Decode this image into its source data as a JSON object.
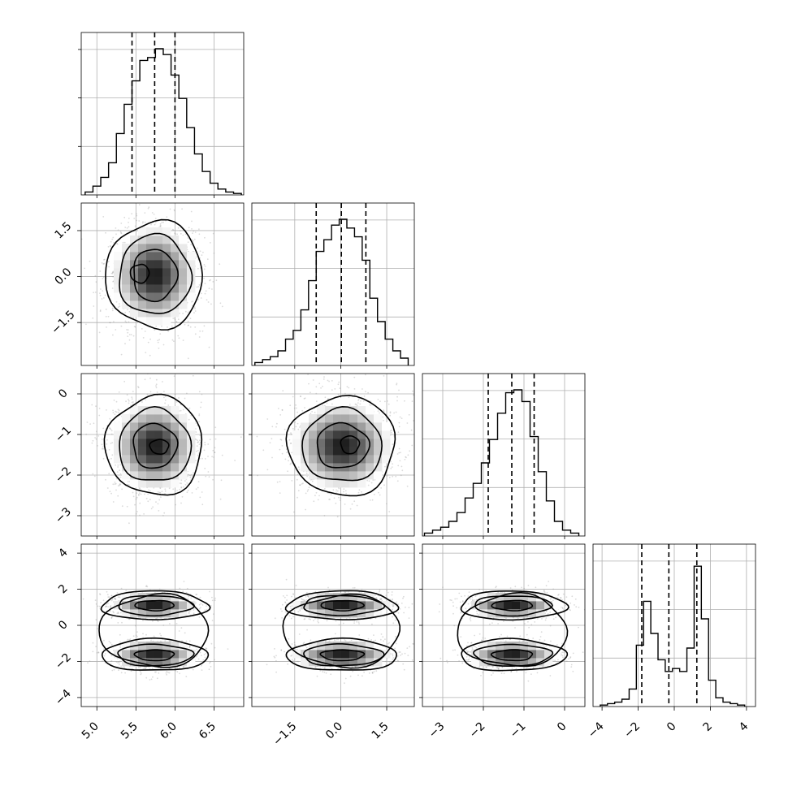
{
  "chart_data": {
    "type": "corner",
    "params": [
      {
        "range": [
          4.8,
          6.88
        ],
        "ticks": [
          5.0,
          5.5,
          6.0,
          6.5
        ],
        "tick_labels": [
          "5.0",
          "5.5",
          "6.0",
          "6.5"
        ],
        "hist_ticks_y": 3
      },
      {
        "range": [
          -2.9,
          2.4
        ],
        "ticks": [
          -1.5,
          0.0,
          1.5
        ],
        "tick_labels": [
          "−1.5",
          "0.0",
          "1.5"
        ],
        "hist_ticks_y": 3
      },
      {
        "range": [
          -3.5,
          0.5
        ],
        "ticks": [
          -3,
          -2,
          -1,
          0
        ],
        "tick_labels": [
          "−3",
          "−2",
          "−1",
          "0"
        ],
        "hist_ticks_y": 3
      },
      {
        "range": [
          -4.5,
          4.5
        ],
        "ticks": [
          -4,
          -2,
          0,
          2,
          4
        ],
        "tick_labels": [
          "−4",
          "−2",
          "0",
          "2",
          "4"
        ],
        "hist_ticks_y": 3
      }
    ],
    "histograms": [
      {
        "edges": [
          4.85,
          4.95,
          5.05,
          5.15,
          5.25,
          5.35,
          5.45,
          5.55,
          5.65,
          5.75,
          5.85,
          5.95,
          6.05,
          6.15,
          6.25,
          6.35,
          6.45,
          6.55,
          6.65,
          6.75,
          6.85
        ],
        "counts": [
          0.02,
          0.06,
          0.12,
          0.22,
          0.42,
          0.62,
          0.78,
          0.92,
          0.94,
          1.0,
          0.96,
          0.82,
          0.66,
          0.46,
          0.28,
          0.16,
          0.08,
          0.04,
          0.02,
          0.01
        ],
        "quantiles": [
          5.45,
          5.74,
          6.0
        ]
      },
      {
        "edges": [
          -2.8,
          -2.55,
          -2.3,
          -2.05,
          -1.8,
          -1.55,
          -1.3,
          -1.05,
          -0.8,
          -0.55,
          -0.3,
          -0.05,
          0.2,
          0.45,
          0.7,
          0.95,
          1.2,
          1.45,
          1.7,
          1.95,
          2.2
        ],
        "counts": [
          0.02,
          0.04,
          0.06,
          0.1,
          0.18,
          0.24,
          0.38,
          0.58,
          0.78,
          0.86,
          0.96,
          1.0,
          0.94,
          0.88,
          0.72,
          0.46,
          0.3,
          0.18,
          0.1,
          0.05
        ],
        "quantiles": [
          -0.8,
          0.02,
          0.82
        ]
      },
      {
        "edges": [
          -3.45,
          -3.25,
          -3.05,
          -2.85,
          -2.65,
          -2.45,
          -2.25,
          -2.05,
          -1.85,
          -1.65,
          -1.45,
          -1.25,
          -1.05,
          -0.85,
          -0.65,
          -0.45,
          -0.25,
          -0.05,
          0.15,
          0.35
        ],
        "counts": [
          0.02,
          0.04,
          0.06,
          0.1,
          0.16,
          0.26,
          0.36,
          0.5,
          0.66,
          0.84,
          0.98,
          1.0,
          0.92,
          0.68,
          0.44,
          0.24,
          0.1,
          0.04,
          0.02
        ],
        "quantiles": [
          -1.88,
          -1.3,
          -0.75
        ]
      },
      {
        "edges": [
          -4.1,
          -3.7,
          -3.3,
          -2.9,
          -2.5,
          -2.1,
          -1.7,
          -1.3,
          -0.9,
          -0.5,
          -0.1,
          0.3,
          0.7,
          1.1,
          1.5,
          1.9,
          2.3,
          2.7,
          3.1,
          3.5,
          3.9
        ],
        "counts": [
          0.01,
          0.02,
          0.03,
          0.05,
          0.12,
          0.42,
          0.72,
          0.5,
          0.32,
          0.24,
          0.26,
          0.24,
          0.4,
          0.96,
          0.6,
          0.18,
          0.06,
          0.03,
          0.02,
          0.01
        ],
        "quantiles": [
          -1.8,
          -0.3,
          1.25
        ]
      }
    ],
    "pairs": [
      {
        "x_param": 0,
        "y_param": 1,
        "modes": [
          {
            "mx": 5.74,
            "my": 0.05,
            "sx": 0.27,
            "sy": 0.8,
            "w": 1
          }
        ],
        "contours": [
          {
            "rings": [
              [
                5.55,
                0.1,
                0.12,
                0.3,
                0.0
              ]
            ]
          },
          {
            "rings": [
              [
                5.74,
                0.05,
                0.28,
                0.85,
                0.0
              ]
            ]
          },
          {
            "rings": [
              [
                5.74,
                0.05,
                0.46,
                1.3,
                0.0
              ]
            ]
          },
          {
            "rings": [
              [
                5.74,
                0.05,
                0.62,
                1.75,
                0.0
              ]
            ]
          }
        ]
      },
      {
        "x_param": 0,
        "y_param": 2,
        "modes": [
          {
            "mx": 5.74,
            "my": -1.28,
            "sx": 0.27,
            "sy": 0.55,
            "w": 1
          }
        ],
        "contours": [
          {
            "rings": [
              [
                5.8,
                -1.3,
                0.12,
                0.18,
                0.0
              ]
            ]
          },
          {
            "rings": [
              [
                5.74,
                -1.28,
                0.28,
                0.55,
                0.0
              ]
            ]
          },
          {
            "rings": [
              [
                5.74,
                -1.28,
                0.46,
                0.9,
                0.0
              ]
            ]
          },
          {
            "rings": [
              [
                5.74,
                -1.28,
                0.62,
                1.22,
                0.0
              ]
            ]
          }
        ]
      },
      {
        "x_param": 1,
        "y_param": 2,
        "modes": [
          {
            "mx": 0.05,
            "my": -1.28,
            "sx": 0.8,
            "sy": 0.55,
            "w": 1
          }
        ],
        "contours": [
          {
            "rings": [
              [
                0.3,
                -1.25,
                0.3,
                0.22,
                0.0
              ]
            ]
          },
          {
            "rings": [
              [
                0.05,
                -1.28,
                0.85,
                0.55,
                0.0
              ]
            ]
          },
          {
            "rings": [
              [
                0.05,
                -1.28,
                1.3,
                0.9,
                0.0
              ]
            ]
          },
          {
            "rings": [
              [
                0.05,
                -1.28,
                1.75,
                1.22,
                0.0
              ]
            ]
          }
        ]
      },
      {
        "x_param": 0,
        "y_param": 3,
        "modes": [
          {
            "mx": 5.74,
            "my": 1.1,
            "sx": 0.27,
            "sy": 0.35,
            "w": 1
          },
          {
            "mx": 5.74,
            "my": -1.65,
            "sx": 0.27,
            "sy": 0.4,
            "w": 1
          }
        ],
        "contours": [
          {
            "rings": [
              [
                5.74,
                1.1,
                0.25,
                0.28,
                0.0
              ],
              [
                5.74,
                -1.65,
                0.25,
                0.3,
                0.0
              ]
            ]
          },
          {
            "rings": [
              [
                5.74,
                1.1,
                0.48,
                0.55,
                0.0
              ],
              [
                5.74,
                -1.65,
                0.48,
                0.6,
                0.0
              ]
            ]
          },
          {
            "rings": [
              [
                5.74,
                1.1,
                0.68,
                0.8,
                0.0
              ],
              [
                5.74,
                -1.65,
                0.68,
                0.88,
                0.0
              ]
            ]
          },
          {
            "rings": [
              [
                5.74,
                -0.3,
                0.7,
                2.0,
                0.0
              ]
            ]
          }
        ]
      },
      {
        "x_param": 1,
        "y_param": 3,
        "modes": [
          {
            "mx": 0.05,
            "my": 1.1,
            "sx": 0.8,
            "sy": 0.35,
            "w": 1
          },
          {
            "mx": 0.05,
            "my": -1.65,
            "sx": 0.8,
            "sy": 0.4,
            "w": 1
          }
        ],
        "contours": [
          {
            "rings": [
              [
                0.05,
                1.1,
                0.7,
                0.28,
                0.0
              ],
              [
                0.05,
                -1.65,
                0.7,
                0.3,
                0.0
              ]
            ]
          },
          {
            "rings": [
              [
                0.05,
                1.1,
                1.3,
                0.55,
                0.0
              ],
              [
                0.05,
                -1.65,
                1.3,
                0.6,
                0.0
              ]
            ]
          },
          {
            "rings": [
              [
                0.05,
                1.1,
                1.8,
                0.8,
                0.0
              ],
              [
                0.05,
                -1.65,
                1.8,
                0.88,
                0.0
              ]
            ]
          },
          {
            "rings": [
              [
                0.05,
                -0.3,
                1.9,
                2.0,
                0.0
              ]
            ]
          }
        ]
      },
      {
        "x_param": 2,
        "y_param": 3,
        "modes": [
          {
            "mx": -1.28,
            "my": 1.1,
            "sx": 0.55,
            "sy": 0.35,
            "w": 1
          },
          {
            "mx": -1.28,
            "my": -1.65,
            "sx": 0.55,
            "sy": 0.4,
            "w": 1
          }
        ],
        "contours": [
          {
            "rings": [
              [
                -1.28,
                1.1,
                0.5,
                0.28,
                0.0
              ],
              [
                -1.28,
                -1.65,
                0.5,
                0.3,
                0.0
              ]
            ]
          },
          {
            "rings": [
              [
                -1.28,
                1.1,
                0.95,
                0.55,
                0.0
              ],
              [
                -1.28,
                -1.65,
                0.95,
                0.6,
                0.0
              ]
            ]
          },
          {
            "rings": [
              [
                -1.28,
                1.1,
                1.3,
                0.8,
                0.0
              ],
              [
                -1.28,
                -1.65,
                1.3,
                0.88,
                0.0
              ]
            ]
          },
          {
            "rings": [
              [
                -1.28,
                -0.3,
                1.35,
                2.0,
                0.0
              ]
            ]
          }
        ]
      }
    ],
    "grid": true,
    "colors": {
      "line": "#000000",
      "grid": "#b0b0b0",
      "scatter": "#999999",
      "density_dark": "#000000",
      "density_light": "#ffffff"
    }
  }
}
